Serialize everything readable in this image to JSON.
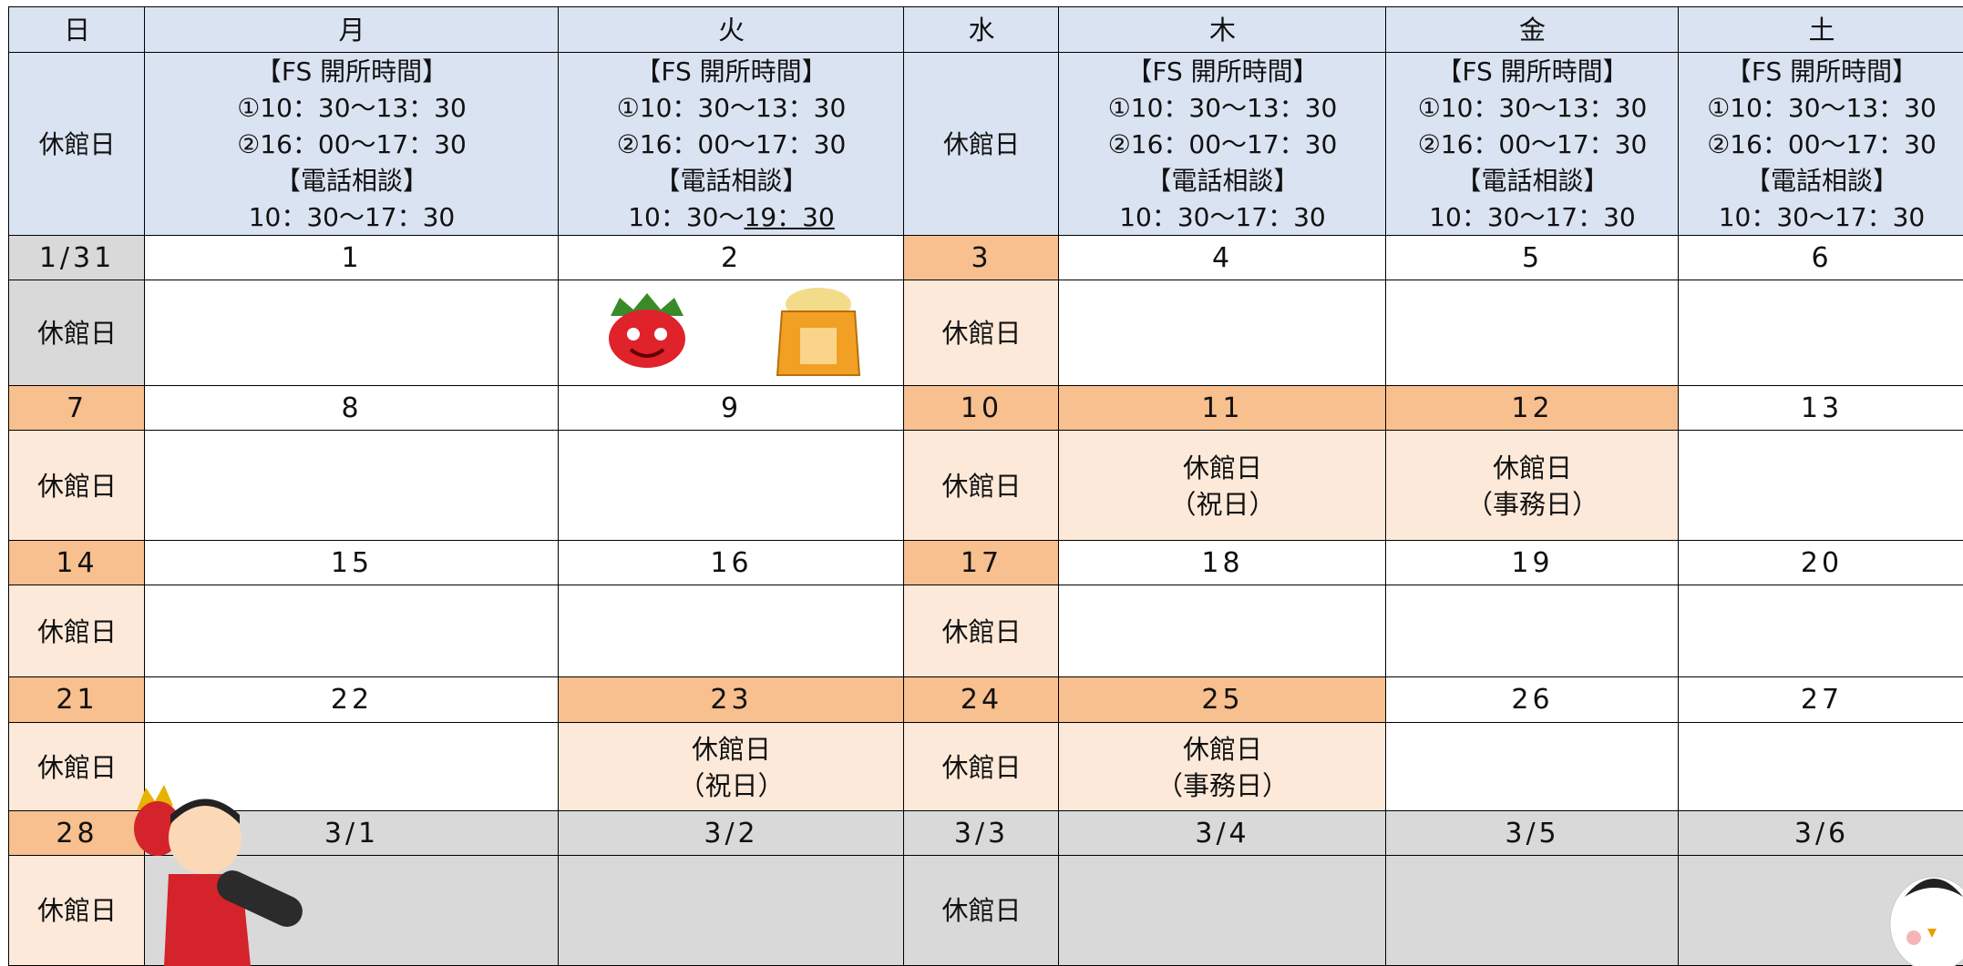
{
  "days": [
    "日",
    "月",
    "火",
    "水",
    "木",
    "金",
    "土"
  ],
  "hours": [
    "休館日",
    [
      "【FS 開所時間】",
      "①10：30～13：30",
      "②16：00～17：30",
      "【電話相談】",
      "10：30～17：30"
    ],
    [
      "【FS 開所時間】",
      "①10：30～13：30",
      "②16：00～17：30",
      "【電話相談】",
      [
        "10：30～",
        "19：30"
      ]
    ],
    "休館日",
    [
      "【FS 開所時間】",
      "①10：30～13：30",
      "②16：00～17：30",
      "【電話相談】",
      "10：30～17：30"
    ],
    [
      "【FS 開所時間】",
      "①10：30～13：30",
      "②16：00～17：30",
      "【電話相談】",
      "10：30～17：30"
    ],
    [
      "【FS 開所時間】",
      "①10：30～13：30",
      "②16：00～17：30",
      "【電話相談】",
      "10：30～17：30"
    ]
  ],
  "weeks": [
    {
      "dates": [
        "1/31",
        "1",
        "2",
        "3",
        "4",
        "5",
        "6"
      ],
      "notes": [
        "休館日",
        null,
        null,
        "休館日",
        null,
        null,
        null
      ]
    },
    {
      "dates": [
        "7",
        "8",
        "9",
        "10",
        "11",
        "12",
        "13"
      ],
      "notes": [
        "休館日",
        null,
        null,
        "休館日",
        [
          "休館日",
          "（祝日）"
        ],
        [
          "休館日",
          "（事務日）"
        ],
        null
      ]
    },
    {
      "dates": [
        "14",
        "15",
        "16",
        "17",
        "18",
        "19",
        "20"
      ],
      "notes": [
        "休館日",
        null,
        null,
        "休館日",
        null,
        null,
        null
      ]
    },
    {
      "dates": [
        "21",
        "22",
        "23",
        "24",
        "25",
        "26",
        "27"
      ],
      "notes": [
        "休館日",
        null,
        [
          "休館日",
          "（祝日）"
        ],
        "休館日",
        [
          "休館日",
          "（事務日）"
        ],
        null,
        null
      ]
    },
    {
      "dates": [
        "28",
        "3/1",
        "3/2",
        "3/3",
        "3/4",
        "3/5",
        "3/6"
      ],
      "notes": [
        "休館日",
        null,
        null,
        "休館日",
        null,
        null,
        null
      ]
    }
  ]
}
